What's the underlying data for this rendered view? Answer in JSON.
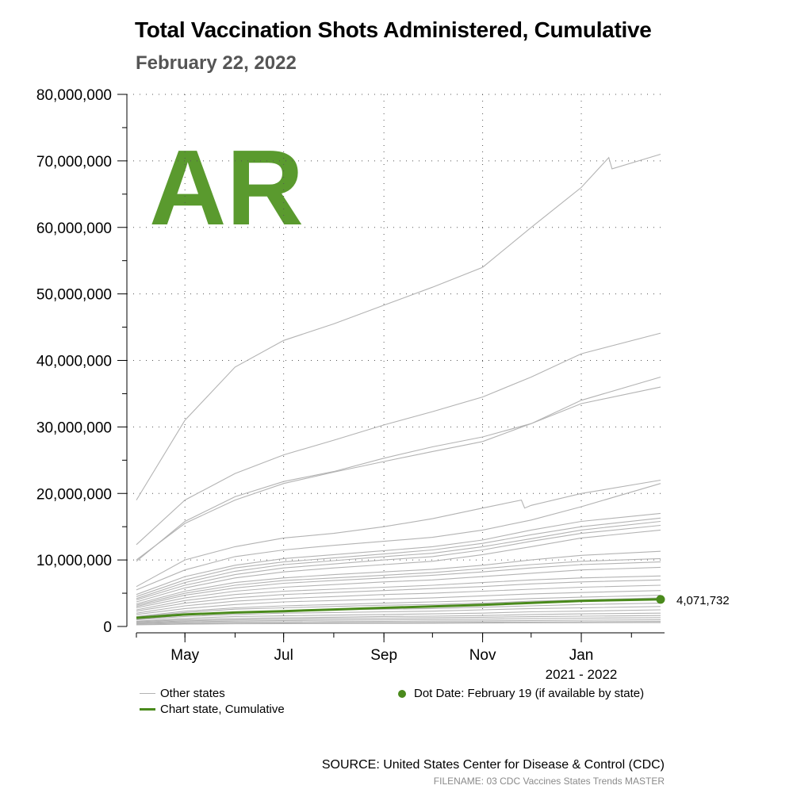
{
  "header": {
    "title": "Total Vaccination Shots Administered, Cumulative",
    "subtitle": "February 22, 2022"
  },
  "state_code": "AR",
  "colors": {
    "accent": "#5a9a2e",
    "highlight_line": "#4a8a1c",
    "other_lines": "#b3b3b3",
    "subtitle": "#555555"
  },
  "legend": {
    "other_states": "Other states",
    "chart_state": "Chart state, Cumulative",
    "dot_date": "Dot Date: February 19 (if available by state)"
  },
  "footer": {
    "source": "SOURCE: United States Center for Disease & Control (CDC)",
    "filename": "FILENAME: 03 CDC Vaccines States Trends MASTER"
  },
  "chart_data": {
    "type": "line",
    "xlabel": "2021 - 2022",
    "ylabel": "",
    "x_range": [
      "2021-04-01",
      "2022-02-19"
    ],
    "ylim": [
      0,
      80000000
    ],
    "y_ticks": [
      0,
      10000000,
      20000000,
      30000000,
      40000000,
      50000000,
      60000000,
      70000000,
      80000000
    ],
    "y_tick_labels": [
      "0",
      "10,000,000",
      "20,000,000",
      "30,000,000",
      "40,000,000",
      "50,000,000",
      "60,000,000",
      "70,000,000",
      "80,000,000"
    ],
    "x_ticks": [
      {
        "date": "2021-05-01",
        "label": "May"
      },
      {
        "date": "2021-07-01",
        "label": "Jul"
      },
      {
        "date": "2021-09-01",
        "label": "Sep"
      },
      {
        "date": "2021-11-01",
        "label": "Nov"
      },
      {
        "date": "2022-01-01",
        "label": "Jan"
      }
    ],
    "grid": true,
    "highlight_series": {
      "name": "Chart state, Cumulative",
      "x": [
        "2021-04-01",
        "2021-05-01",
        "2021-06-01",
        "2021-07-01",
        "2021-08-01",
        "2021-09-01",
        "2021-10-01",
        "2021-11-01",
        "2021-12-01",
        "2022-01-01",
        "2022-02-19"
      ],
      "values": [
        1300000,
        1800000,
        2100000,
        2300000,
        2550000,
        2800000,
        3000000,
        3250000,
        3550000,
        3850000,
        4071732
      ],
      "end_label": "4,071,732"
    },
    "other_series": [
      {
        "x": [
          "2021-04-01",
          "2021-05-01",
          "2021-06-01",
          "2021-07-01",
          "2021-08-01",
          "2021-09-01",
          "2021-10-01",
          "2021-11-01",
          "2021-12-01",
          "2022-01-01",
          "2022-01-18",
          "2022-01-20",
          "2022-02-19"
        ],
        "values": [
          19000000,
          31000000,
          39000000,
          43000000,
          45500000,
          48300000,
          51000000,
          54000000,
          60000000,
          66000000,
          70500000,
          68800000,
          71000000
        ]
      },
      {
        "x": [
          "2021-04-01",
          "2021-05-01",
          "2021-06-01",
          "2021-07-01",
          "2021-08-01",
          "2021-09-01",
          "2021-10-01",
          "2021-11-01",
          "2021-12-01",
          "2022-01-01",
          "2022-02-19"
        ],
        "values": [
          12300000,
          19000000,
          23000000,
          25800000,
          28000000,
          30300000,
          32300000,
          34500000,
          37500000,
          41000000,
          44100000
        ]
      },
      {
        "x": [
          "2021-04-01",
          "2021-05-01",
          "2021-06-01",
          "2021-07-01",
          "2021-08-01",
          "2021-09-01",
          "2021-10-01",
          "2021-11-01",
          "2021-12-01",
          "2022-01-01",
          "2022-02-19"
        ],
        "values": [
          9800000,
          15800000,
          19500000,
          21800000,
          23300000,
          25300000,
          27000000,
          28500000,
          30500000,
          34000000,
          37500000
        ]
      },
      {
        "x": [
          "2021-04-01",
          "2021-05-01",
          "2021-06-01",
          "2021-07-01",
          "2021-08-01",
          "2021-09-01",
          "2021-10-01",
          "2021-11-01",
          "2021-12-01",
          "2022-01-01",
          "2022-02-19"
        ],
        "values": [
          10000000,
          15500000,
          19000000,
          21500000,
          23200000,
          24800000,
          26300000,
          27800000,
          30500000,
          33500000,
          36000000
        ]
      },
      {
        "x": [
          "2021-04-01",
          "2021-05-01",
          "2021-06-01",
          "2021-07-01",
          "2021-08-01",
          "2021-09-01",
          "2021-10-01",
          "2021-11-01",
          "2021-11-25",
          "2021-11-27",
          "2021-12-01",
          "2022-01-01",
          "2022-02-19"
        ],
        "values": [
          6000000,
          10000000,
          12000000,
          13300000,
          14000000,
          15000000,
          16200000,
          17800000,
          19000000,
          17800000,
          18200000,
          20000000,
          22000000
        ]
      },
      {
        "x": [
          "2021-04-01",
          "2021-05-01",
          "2021-06-01",
          "2021-07-01",
          "2021-08-01",
          "2021-09-01",
          "2021-10-01",
          "2021-11-01",
          "2021-12-01",
          "2022-01-01",
          "2022-02-19"
        ],
        "values": [
          5500000,
          8500000,
          10500000,
          11500000,
          12200000,
          12800000,
          13400000,
          14500000,
          16000000,
          18000000,
          21500000
        ]
      },
      {
        "x": [
          "2021-04-01",
          "2021-05-01",
          "2021-06-01",
          "2021-07-01",
          "2021-08-01",
          "2021-09-01",
          "2021-10-01",
          "2021-11-01",
          "2021-12-01",
          "2022-01-01",
          "2022-02-19"
        ],
        "values": [
          4800000,
          7500000,
          9200000,
          10200000,
          10800000,
          11400000,
          12000000,
          13000000,
          14500000,
          15800000,
          17000000
        ]
      },
      {
        "x": [
          "2021-04-01",
          "2021-05-01",
          "2021-06-01",
          "2021-07-01",
          "2021-08-01",
          "2021-09-01",
          "2021-10-01",
          "2021-11-01",
          "2021-12-01",
          "2022-01-01",
          "2022-02-19"
        ],
        "values": [
          4500000,
          7000000,
          8800000,
          9700000,
          10300000,
          10900000,
          11500000,
          12500000,
          13800000,
          15000000,
          16300000
        ]
      },
      {
        "x": [
          "2021-04-01",
          "2021-05-01",
          "2021-06-01",
          "2021-07-01",
          "2021-08-01",
          "2021-09-01",
          "2021-10-01",
          "2021-11-01",
          "2021-12-01",
          "2022-01-01",
          "2022-02-19"
        ],
        "values": [
          4200000,
          6600000,
          8300000,
          9300000,
          9900000,
          10500000,
          11000000,
          12000000,
          13200000,
          14500000,
          15800000
        ]
      },
      {
        "x": [
          "2021-04-01",
          "2021-05-01",
          "2021-06-01",
          "2021-07-01",
          "2021-08-01",
          "2021-09-01",
          "2021-10-01",
          "2021-11-01",
          "2021-12-01",
          "2022-01-01",
          "2022-02-19"
        ],
        "values": [
          4000000,
          6200000,
          7800000,
          8800000,
          9400000,
          10000000,
          10500000,
          11500000,
          12800000,
          14000000,
          15200000
        ]
      },
      {
        "x": [
          "2021-04-01",
          "2021-05-01",
          "2021-06-01",
          "2021-07-01",
          "2021-08-01",
          "2021-09-01",
          "2021-10-01",
          "2021-11-01",
          "2021-12-01",
          "2022-01-01",
          "2022-02-19"
        ],
        "values": [
          3700000,
          5800000,
          7300000,
          8200000,
          8800000,
          9300000,
          9800000,
          10800000,
          12000000,
          13300000,
          14500000
        ]
      },
      {
        "x": [
          "2021-04-01",
          "2021-05-01",
          "2021-06-01",
          "2021-07-01",
          "2021-08-01",
          "2021-09-01",
          "2021-10-01",
          "2021-11-01",
          "2021-12-01",
          "2022-01-01",
          "2022-02-19"
        ],
        "values": [
          3400000,
          5300000,
          6600000,
          7300000,
          7800000,
          8200000,
          8600000,
          9200000,
          10000000,
          10700000,
          11300000
        ]
      },
      {
        "x": [
          "2021-04-01",
          "2021-05-01",
          "2021-06-01",
          "2021-07-01",
          "2021-08-01",
          "2021-09-01",
          "2021-10-01",
          "2021-11-01",
          "2021-12-01",
          "2022-01-01",
          "2022-02-19"
        ],
        "values": [
          3200000,
          5000000,
          6200000,
          6900000,
          7300000,
          7700000,
          8100000,
          8700000,
          9300000,
          9800000,
          10200000
        ]
      },
      {
        "x": [
          "2021-04-01",
          "2021-05-01",
          "2021-06-01",
          "2021-07-01",
          "2021-08-01",
          "2021-09-01",
          "2021-10-01",
          "2021-11-01",
          "2021-12-01",
          "2022-01-01",
          "2022-02-19"
        ],
        "values": [
          3000000,
          4700000,
          5800000,
          6500000,
          6900000,
          7300000,
          7700000,
          8200000,
          8800000,
          9300000,
          9700000
        ]
      },
      {
        "x": [
          "2021-04-01",
          "2021-05-01",
          "2021-06-01",
          "2021-07-01",
          "2021-08-01",
          "2021-09-01",
          "2021-10-01",
          "2021-11-01",
          "2021-12-01",
          "2022-01-01",
          "2022-02-19"
        ],
        "values": [
          2800000,
          4300000,
          5300000,
          5900000,
          6300000,
          6700000,
          7000000,
          7500000,
          8000000,
          8500000,
          8900000
        ]
      },
      {
        "x": [
          "2021-04-01",
          "2021-05-01",
          "2021-06-01",
          "2021-07-01",
          "2021-08-01",
          "2021-09-01",
          "2021-10-01",
          "2021-11-01",
          "2021-12-01",
          "2022-01-01",
          "2022-02-19"
        ],
        "values": [
          2500000,
          3900000,
          4800000,
          5300000,
          5600000,
          5900000,
          6200000,
          6600000,
          7000000,
          7300000,
          7600000
        ]
      },
      {
        "x": [
          "2021-04-01",
          "2021-05-01",
          "2021-06-01",
          "2021-07-01",
          "2021-08-01",
          "2021-09-01",
          "2021-10-01",
          "2021-11-01",
          "2021-12-01",
          "2022-01-01",
          "2022-02-19"
        ],
        "values": [
          2300000,
          3500000,
          4300000,
          4800000,
          5100000,
          5400000,
          5700000,
          6000000,
          6400000,
          6700000,
          7000000
        ]
      },
      {
        "x": [
          "2021-04-01",
          "2021-05-01",
          "2021-06-01",
          "2021-07-01",
          "2021-08-01",
          "2021-09-01",
          "2021-10-01",
          "2021-11-01",
          "2021-12-01",
          "2022-01-01",
          "2022-02-19"
        ],
        "values": [
          2000000,
          3100000,
          3800000,
          4200000,
          4500000,
          4800000,
          5000000,
          5300000,
          5600000,
          5900000,
          6200000
        ]
      },
      {
        "x": [
          "2021-04-01",
          "2021-05-01",
          "2021-06-01",
          "2021-07-01",
          "2021-08-01",
          "2021-09-01",
          "2021-10-01",
          "2021-11-01",
          "2021-12-01",
          "2022-01-01",
          "2022-02-19"
        ],
        "values": [
          1800000,
          2700000,
          3300000,
          3700000,
          3900000,
          4100000,
          4300000,
          4600000,
          4900000,
          5100000,
          5400000
        ]
      },
      {
        "x": [
          "2021-04-01",
          "2021-05-01",
          "2021-06-01",
          "2021-07-01",
          "2021-08-01",
          "2021-09-01",
          "2021-10-01",
          "2021-11-01",
          "2021-12-01",
          "2022-01-01",
          "2022-02-19"
        ],
        "values": [
          1500000,
          2300000,
          2800000,
          3100000,
          3300000,
          3500000,
          3700000,
          3900000,
          4200000,
          4400000,
          4700000
        ]
      },
      {
        "x": [
          "2021-04-01",
          "2021-05-01",
          "2021-06-01",
          "2021-07-01",
          "2021-08-01",
          "2021-09-01",
          "2021-10-01",
          "2021-11-01",
          "2021-12-01",
          "2022-01-01",
          "2022-02-19"
        ],
        "values": [
          1400000,
          2100000,
          2600000,
          2800000,
          3000000,
          3200000,
          3300000,
          3500000,
          3800000,
          4000000,
          4300000
        ]
      },
      {
        "x": [
          "2021-04-01",
          "2021-05-01",
          "2021-06-01",
          "2021-07-01",
          "2021-08-01",
          "2021-09-01",
          "2021-10-01",
          "2021-11-01",
          "2021-12-01",
          "2022-01-01",
          "2022-02-19"
        ],
        "values": [
          1100000,
          1700000,
          2100000,
          2300000,
          2500000,
          2600000,
          2700000,
          2900000,
          3100000,
          3300000,
          3500000
        ]
      },
      {
        "x": [
          "2021-04-01",
          "2021-05-01",
          "2021-06-01",
          "2021-07-01",
          "2021-08-01",
          "2021-09-01",
          "2021-10-01",
          "2021-11-01",
          "2021-12-01",
          "2022-01-01",
          "2022-02-19"
        ],
        "values": [
          1000000,
          1500000,
          1800000,
          2000000,
          2100000,
          2200000,
          2300000,
          2500000,
          2700000,
          2800000,
          3000000
        ]
      },
      {
        "x": [
          "2021-04-01",
          "2021-05-01",
          "2021-06-01",
          "2021-07-01",
          "2021-08-01",
          "2021-09-01",
          "2021-10-01",
          "2021-11-01",
          "2021-12-01",
          "2022-01-01",
          "2022-02-19"
        ],
        "values": [
          800000,
          1200000,
          1500000,
          1600000,
          1700000,
          1800000,
          1900000,
          2000000,
          2200000,
          2300000,
          2500000
        ]
      },
      {
        "x": [
          "2021-04-01",
          "2021-05-01",
          "2021-06-01",
          "2021-07-01",
          "2021-08-01",
          "2021-09-01",
          "2021-10-01",
          "2021-11-01",
          "2021-12-01",
          "2022-01-01",
          "2022-02-19"
        ],
        "values": [
          700000,
          1000000,
          1200000,
          1300000,
          1400000,
          1500000,
          1550000,
          1650000,
          1800000,
          1900000,
          2000000
        ]
      },
      {
        "x": [
          "2021-04-01",
          "2021-05-01",
          "2021-06-01",
          "2021-07-01",
          "2021-08-01",
          "2021-09-01",
          "2021-10-01",
          "2021-11-01",
          "2021-12-01",
          "2022-01-01",
          "2022-02-19"
        ],
        "values": [
          600000,
          850000,
          1000000,
          1100000,
          1180000,
          1250000,
          1300000,
          1380000,
          1480000,
          1550000,
          1650000
        ]
      },
      {
        "x": [
          "2021-04-01",
          "2021-05-01",
          "2021-06-01",
          "2021-07-01",
          "2021-08-01",
          "2021-09-01",
          "2021-10-01",
          "2021-11-01",
          "2021-12-01",
          "2022-01-01",
          "2022-02-19"
        ],
        "values": [
          500000,
          700000,
          820000,
          900000,
          960000,
          1000000,
          1050000,
          1100000,
          1180000,
          1250000,
          1320000
        ]
      },
      {
        "x": [
          "2021-04-01",
          "2021-05-01",
          "2021-06-01",
          "2021-07-01",
          "2021-08-01",
          "2021-09-01",
          "2021-10-01",
          "2021-11-01",
          "2021-12-01",
          "2022-01-01",
          "2022-02-19"
        ],
        "values": [
          400000,
          550000,
          650000,
          700000,
          740000,
          780000,
          810000,
          850000,
          900000,
          950000,
          1000000
        ]
      },
      {
        "x": [
          "2021-04-01",
          "2021-05-01",
          "2021-06-01",
          "2021-07-01",
          "2021-08-01",
          "2021-09-01",
          "2021-10-01",
          "2021-11-01",
          "2021-12-01",
          "2022-01-01",
          "2022-02-19"
        ],
        "values": [
          300000,
          420000,
          490000,
          530000,
          560000,
          590000,
          610000,
          640000,
          680000,
          710000,
          750000
        ]
      },
      {
        "x": [
          "2021-04-01",
          "2021-05-01",
          "2021-06-01",
          "2021-07-01",
          "2021-08-01",
          "2021-09-01",
          "2021-10-01",
          "2021-11-01",
          "2021-12-01",
          "2022-01-01",
          "2022-02-19"
        ],
        "values": [
          250000,
          340000,
          400000,
          430000,
          450000,
          470000,
          490000,
          510000,
          540000,
          560000,
          590000
        ]
      }
    ]
  }
}
